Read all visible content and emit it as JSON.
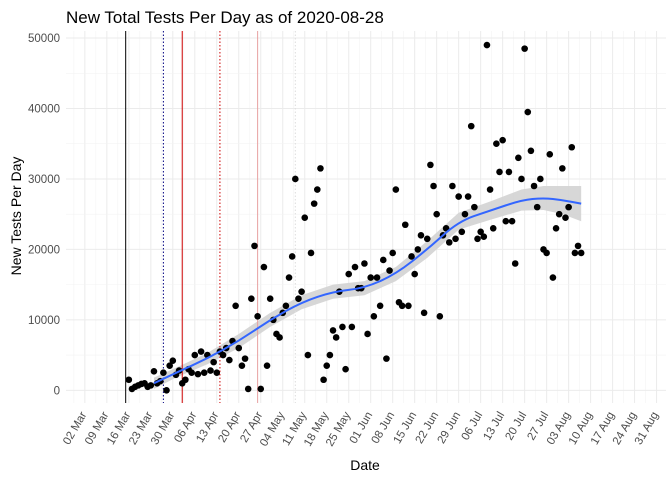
{
  "chart_data": {
    "type": "scatter",
    "title": "New Total Tests Per Day as of 2020-08-28",
    "xlabel": "Date",
    "ylabel": "New Tests Per Day",
    "start_date": "2020-02-25",
    "xlim_days": [
      0,
      191
    ],
    "ylim": [
      -1800,
      51000
    ],
    "y_ticks": [
      0,
      10000,
      20000,
      30000,
      40000,
      50000
    ],
    "x_ticks": [
      {
        "day": 6,
        "label": "02 Mar"
      },
      {
        "day": 13,
        "label": "09 Mar"
      },
      {
        "day": 20,
        "label": "16 Mar"
      },
      {
        "day": 27,
        "label": "23 Mar"
      },
      {
        "day": 34,
        "label": "30 Mar"
      },
      {
        "day": 41,
        "label": "06 Apr"
      },
      {
        "day": 48,
        "label": "13 Apr"
      },
      {
        "day": 55,
        "label": "20 Apr"
      },
      {
        "day": 62,
        "label": "27 Apr"
      },
      {
        "day": 69,
        "label": "04 May"
      },
      {
        "day": 76,
        "label": "11 May"
      },
      {
        "day": 83,
        "label": "18 May"
      },
      {
        "day": 90,
        "label": "25 May"
      },
      {
        "day": 97,
        "label": "01 Jun"
      },
      {
        "day": 104,
        "label": "08 Jun"
      },
      {
        "day": 111,
        "label": "15 Jun"
      },
      {
        "day": 118,
        "label": "22 Jun"
      },
      {
        "day": 125,
        "label": "29 Jun"
      },
      {
        "day": 132,
        "label": "06 Jul"
      },
      {
        "day": 139,
        "label": "13 Jul"
      },
      {
        "day": 146,
        "label": "20 Jul"
      },
      {
        "day": 153,
        "label": "27 Jul"
      },
      {
        "day": 160,
        "label": "03 Aug"
      },
      {
        "day": 167,
        "label": "10 Aug"
      },
      {
        "day": 174,
        "label": "17 Aug"
      },
      {
        "day": 181,
        "label": "24 Aug"
      },
      {
        "day": 188,
        "label": "31 Aug"
      }
    ],
    "vlines": [
      {
        "day": 19,
        "color": "#000000",
        "style": "solid"
      },
      {
        "day": 31,
        "color": "#000080",
        "style": "dotted"
      },
      {
        "day": 37,
        "color": "#cc0000",
        "style": "solid"
      },
      {
        "day": 49,
        "color": "#cc0000",
        "style": "dotted"
      },
      {
        "day": 61,
        "color": "#e8a0a0",
        "style": "solid"
      },
      {
        "day": 73,
        "color": "#dddddd",
        "style": "dotted"
      }
    ],
    "points": [
      {
        "day": 20,
        "y": 1500
      },
      {
        "day": 21,
        "y": 200
      },
      {
        "day": 22,
        "y": 500
      },
      {
        "day": 23,
        "y": 700
      },
      {
        "day": 24,
        "y": 900
      },
      {
        "day": 25,
        "y": 1000
      },
      {
        "day": 26,
        "y": 500
      },
      {
        "day": 27,
        "y": 700
      },
      {
        "day": 28,
        "y": 2700
      },
      {
        "day": 29,
        "y": 1000
      },
      {
        "day": 30,
        "y": 1300
      },
      {
        "day": 31,
        "y": 2500
      },
      {
        "day": 32,
        "y": 0
      },
      {
        "day": 33,
        "y": 3500
      },
      {
        "day": 34,
        "y": 4200
      },
      {
        "day": 35,
        "y": 2200
      },
      {
        "day": 36,
        "y": 2800
      },
      {
        "day": 37,
        "y": 1000
      },
      {
        "day": 38,
        "y": 1500
      },
      {
        "day": 39,
        "y": 3000
      },
      {
        "day": 40,
        "y": 2500
      },
      {
        "day": 41,
        "y": 5000
      },
      {
        "day": 42,
        "y": 2300
      },
      {
        "day": 43,
        "y": 5500
      },
      {
        "day": 44,
        "y": 2500
      },
      {
        "day": 45,
        "y": 5000
      },
      {
        "day": 46,
        "y": 2800
      },
      {
        "day": 47,
        "y": 4000
      },
      {
        "day": 48,
        "y": 2500
      },
      {
        "day": 49,
        "y": 5500
      },
      {
        "day": 50,
        "y": 5000
      },
      {
        "day": 51,
        "y": 6000
      },
      {
        "day": 52,
        "y": 4300
      },
      {
        "day": 53,
        "y": 7000
      },
      {
        "day": 54,
        "y": 12000
      },
      {
        "day": 55,
        "y": 6000
      },
      {
        "day": 56,
        "y": 3500
      },
      {
        "day": 57,
        "y": 4500
      },
      {
        "day": 58,
        "y": 200
      },
      {
        "day": 59,
        "y": 13000
      },
      {
        "day": 60,
        "y": 20500
      },
      {
        "day": 61,
        "y": 10500
      },
      {
        "day": 62,
        "y": 200
      },
      {
        "day": 63,
        "y": 17500
      },
      {
        "day": 64,
        "y": 3500
      },
      {
        "day": 65,
        "y": 13000
      },
      {
        "day": 66,
        "y": 10000
      },
      {
        "day": 67,
        "y": 8000
      },
      {
        "day": 68,
        "y": 7500
      },
      {
        "day": 69,
        "y": 11000
      },
      {
        "day": 70,
        "y": 12000
      },
      {
        "day": 71,
        "y": 16000
      },
      {
        "day": 72,
        "y": 19000
      },
      {
        "day": 73,
        "y": 30000
      },
      {
        "day": 74,
        "y": 13000
      },
      {
        "day": 75,
        "y": 14000
      },
      {
        "day": 76,
        "y": 24500
      },
      {
        "day": 77,
        "y": 5000
      },
      {
        "day": 78,
        "y": 19500
      },
      {
        "day": 79,
        "y": 26500
      },
      {
        "day": 80,
        "y": 28500
      },
      {
        "day": 81,
        "y": 31500
      },
      {
        "day": 82,
        "y": 1500
      },
      {
        "day": 83,
        "y": 3500
      },
      {
        "day": 84,
        "y": 5000
      },
      {
        "day": 85,
        "y": 8500
      },
      {
        "day": 86,
        "y": 7500
      },
      {
        "day": 87,
        "y": 14000
      },
      {
        "day": 88,
        "y": 9000
      },
      {
        "day": 89,
        "y": 3000
      },
      {
        "day": 90,
        "y": 16500
      },
      {
        "day": 91,
        "y": 9000
      },
      {
        "day": 92,
        "y": 17500
      },
      {
        "day": 93,
        "y": 14500
      },
      {
        "day": 94,
        "y": 14500
      },
      {
        "day": 95,
        "y": 18000
      },
      {
        "day": 96,
        "y": 8000
      },
      {
        "day": 97,
        "y": 16000
      },
      {
        "day": 98,
        "y": 10500
      },
      {
        "day": 99,
        "y": 16000
      },
      {
        "day": 100,
        "y": 12000
      },
      {
        "day": 101,
        "y": 18500
      },
      {
        "day": 102,
        "y": 4500
      },
      {
        "day": 103,
        "y": 17000
      },
      {
        "day": 104,
        "y": 19500
      },
      {
        "day": 105,
        "y": 28500
      },
      {
        "day": 106,
        "y": 12500
      },
      {
        "day": 107,
        "y": 12000
      },
      {
        "day": 108,
        "y": 23500
      },
      {
        "day": 109,
        "y": 12000
      },
      {
        "day": 110,
        "y": 19000
      },
      {
        "day": 111,
        "y": 16500
      },
      {
        "day": 112,
        "y": 20000
      },
      {
        "day": 113,
        "y": 22000
      },
      {
        "day": 114,
        "y": 11000
      },
      {
        "day": 115,
        "y": 21500
      },
      {
        "day": 116,
        "y": 32000
      },
      {
        "day": 117,
        "y": 29000
      },
      {
        "day": 118,
        "y": 25000
      },
      {
        "day": 119,
        "y": 10500
      },
      {
        "day": 120,
        "y": 22000
      },
      {
        "day": 121,
        "y": 23000
      },
      {
        "day": 122,
        "y": 21000
      },
      {
        "day": 123,
        "y": 29000
      },
      {
        "day": 124,
        "y": 21500
      },
      {
        "day": 125,
        "y": 27500
      },
      {
        "day": 126,
        "y": 22500
      },
      {
        "day": 127,
        "y": 25000
      },
      {
        "day": 128,
        "y": 27500
      },
      {
        "day": 129,
        "y": 37500
      },
      {
        "day": 130,
        "y": 26000
      },
      {
        "day": 131,
        "y": 21500
      },
      {
        "day": 132,
        "y": 22500
      },
      {
        "day": 133,
        "y": 21800
      },
      {
        "day": 134,
        "y": 49000
      },
      {
        "day": 135,
        "y": 28500
      },
      {
        "day": 136,
        "y": 23000
      },
      {
        "day": 137,
        "y": 35000
      },
      {
        "day": 138,
        "y": 31000
      },
      {
        "day": 139,
        "y": 35500
      },
      {
        "day": 140,
        "y": 24000
      },
      {
        "day": 141,
        "y": 31000
      },
      {
        "day": 142,
        "y": 24000
      },
      {
        "day": 143,
        "y": 18000
      },
      {
        "day": 144,
        "y": 33000
      },
      {
        "day": 145,
        "y": 30000
      },
      {
        "day": 146,
        "y": 48500
      },
      {
        "day": 147,
        "y": 39500
      },
      {
        "day": 148,
        "y": 34000
      },
      {
        "day": 149,
        "y": 29000
      },
      {
        "day": 150,
        "y": 26000
      },
      {
        "day": 151,
        "y": 30000
      },
      {
        "day": 152,
        "y": 20000
      },
      {
        "day": 153,
        "y": 19500
      },
      {
        "day": 154,
        "y": 33500
      },
      {
        "day": 155,
        "y": 16000
      },
      {
        "day": 156,
        "y": 23000
      },
      {
        "day": 157,
        "y": 25000
      },
      {
        "day": 158,
        "y": 31500
      },
      {
        "day": 159,
        "y": 24500
      },
      {
        "day": 160,
        "y": 26000
      },
      {
        "day": 161,
        "y": 34500
      },
      {
        "day": 162,
        "y": 19500
      },
      {
        "day": 163,
        "y": 20500
      },
      {
        "day": 164,
        "y": 19500
      }
    ],
    "smooth": {
      "color": "#3366ff",
      "band_color": "#d3d3d3",
      "x": [
        28,
        35,
        45,
        55,
        65,
        75,
        85,
        95,
        105,
        115,
        125,
        135,
        145,
        152,
        158,
        164
      ],
      "y": [
        1000,
        2500,
        4500,
        7000,
        10000,
        12500,
        14000,
        14500,
        16500,
        20000,
        24000,
        25500,
        27000,
        27300,
        27000,
        26500
      ],
      "band_halfwidth": [
        800,
        700,
        800,
        1000,
        1000,
        1000,
        1000,
        1000,
        1000,
        1200,
        1200,
        1300,
        1500,
        1700,
        2000,
        2500
      ]
    }
  }
}
